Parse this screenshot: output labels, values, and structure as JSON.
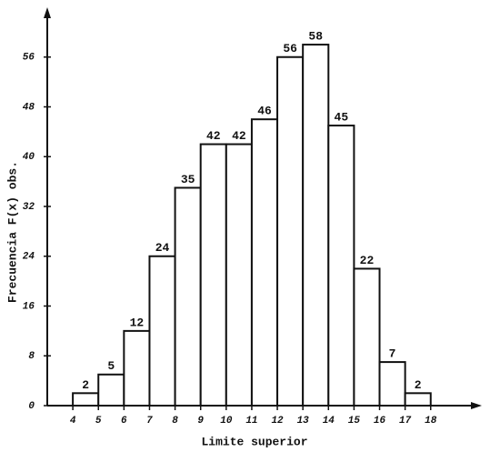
{
  "chart_data": {
    "type": "histogram",
    "xlabel": "Limite superior",
    "ylabel": "Frecuencia  F(x) obs.",
    "bins": [
      4,
      5,
      6,
      7,
      8,
      9,
      10,
      11,
      12,
      13,
      14,
      15,
      16,
      17,
      18
    ],
    "counts": [
      2,
      5,
      12,
      24,
      35,
      42,
      42,
      46,
      56,
      58,
      45,
      22,
      7,
      2
    ],
    "xlim": [
      3,
      20
    ],
    "ylim": [
      0,
      64
    ],
    "xticks": [
      4,
      5,
      6,
      7,
      8,
      9,
      10,
      11,
      12,
      13,
      14,
      15,
      16,
      17,
      18
    ],
    "yticks": [
      0,
      8,
      16,
      24,
      32,
      40,
      48,
      56
    ],
    "color": "#ffffff",
    "edgecolor": "#111111",
    "grid": false
  }
}
